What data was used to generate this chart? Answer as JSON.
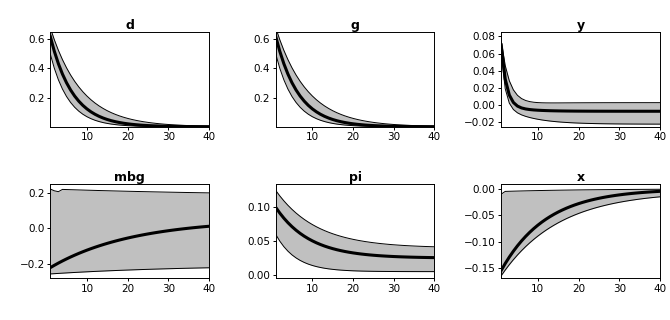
{
  "panels": [
    {
      "title": "d",
      "xlim": [
        1,
        40
      ],
      "xticks": [
        10,
        20,
        30,
        40
      ],
      "ylim": [
        0,
        0.65
      ],
      "yticks": [
        0.2,
        0.4,
        0.6
      ]
    },
    {
      "title": "g",
      "xlim": [
        1,
        40
      ],
      "xticks": [
        10,
        20,
        30,
        40
      ],
      "ylim": [
        0,
        0.65
      ],
      "yticks": [
        0.2,
        0.4,
        0.6
      ]
    },
    {
      "title": "y",
      "xlim": [
        1,
        40
      ],
      "xticks": [
        10,
        20,
        30,
        40
      ],
      "ylim": [
        -0.025,
        0.085
      ],
      "yticks": [
        -0.02,
        0,
        0.02,
        0.04,
        0.06,
        0.08
      ]
    },
    {
      "title": "mbg",
      "xlim": [
        1,
        40
      ],
      "xticks": [
        10,
        20,
        30,
        40
      ],
      "ylim": [
        -0.28,
        0.25
      ],
      "yticks": [
        -0.2,
        0,
        0.2
      ]
    },
    {
      "title": "pi",
      "xlim": [
        1,
        40
      ],
      "xticks": [
        10,
        20,
        30,
        40
      ],
      "ylim": [
        -0.005,
        0.135
      ],
      "yticks": [
        0,
        0.05,
        0.1
      ]
    },
    {
      "title": "x",
      "xlim": [
        1,
        40
      ],
      "xticks": [
        10,
        20,
        30,
        40
      ],
      "ylim": [
        -0.17,
        0.01
      ],
      "yticks": [
        -0.15,
        -0.1,
        -0.05,
        0
      ]
    }
  ],
  "background_color": "#ffffff",
  "fill_color": "#c0c0c0",
  "line_color": "#000000",
  "border_color": "#000000",
  "title_fontsize": 9,
  "tick_fontsize": 7.5
}
